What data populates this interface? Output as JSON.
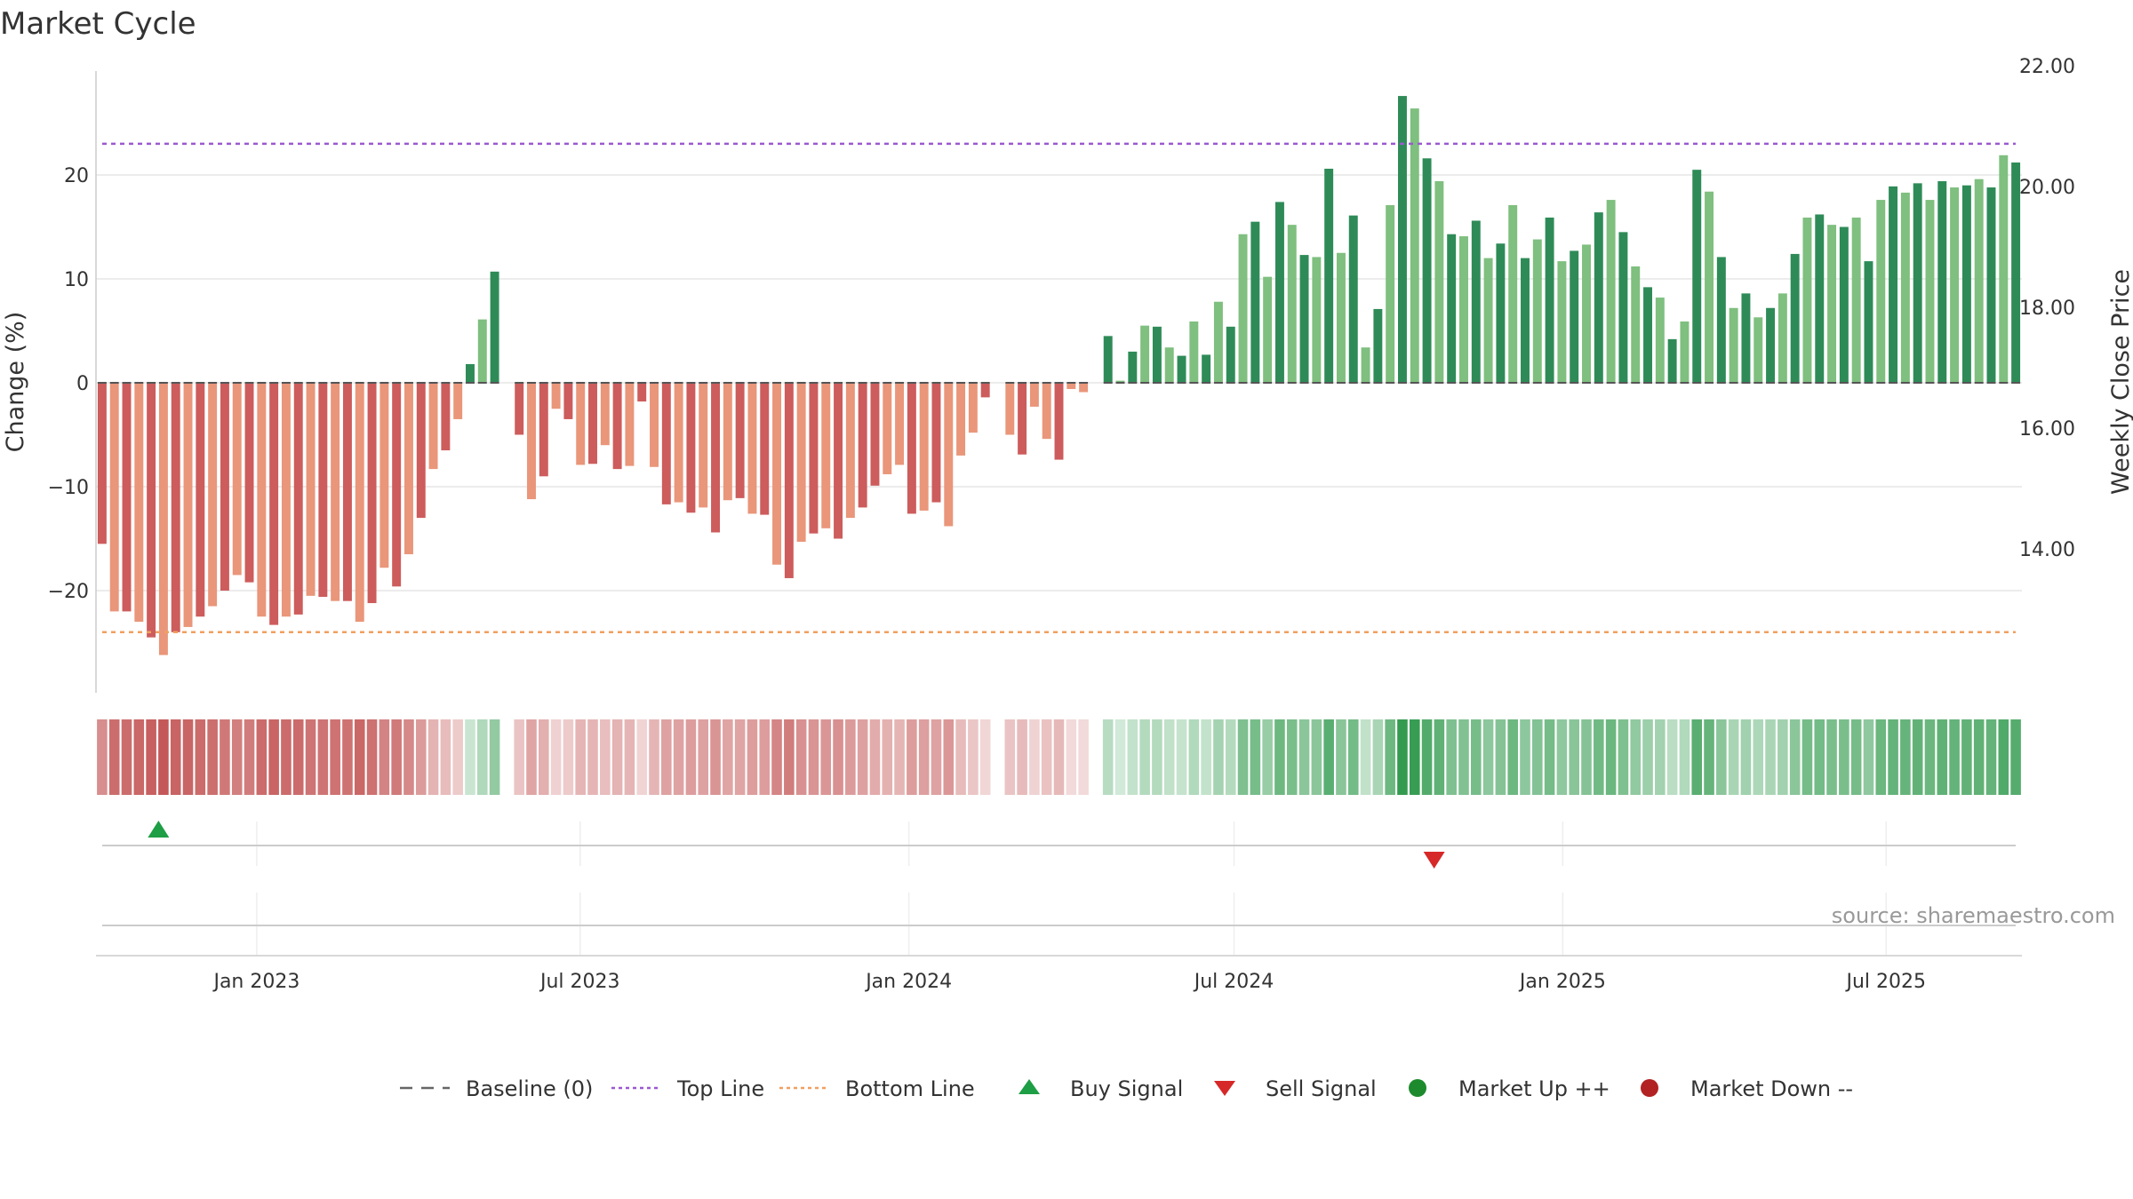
{
  "chart_data": {
    "type": "bar",
    "title": "Market Cycle",
    "ylabel_left": "Change (%)",
    "ylabel_right": "Weekly Close Price",
    "source": "source: sharemaestro.com",
    "ylim": [
      -30,
      30
    ],
    "yticks": [
      20,
      10,
      0,
      -10,
      -20
    ],
    "ytick_labels": [
      "20",
      "10",
      "0",
      "−10",
      "−20"
    ],
    "right_ylim": [
      12.0,
      22.5
    ],
    "right_yticks": [
      "22.00",
      "20.00",
      "18.00",
      "16.00",
      "14.00"
    ],
    "top_line": 23.0,
    "bottom_line": -24.0,
    "x_start": "2022-10-03",
    "x_end": "2025-09-15",
    "x_ticks": [
      {
        "date": "2023-01-01",
        "label": "Jan 2023"
      },
      {
        "date": "2023-07-01",
        "label": "Jul 2023"
      },
      {
        "date": "2024-01-01",
        "label": "Jan 2024"
      },
      {
        "date": "2024-07-01",
        "label": "Jul 2024"
      },
      {
        "date": "2025-01-01",
        "label": "Jan 2025"
      },
      {
        "date": "2025-07-01",
        "label": "Jul 2025"
      }
    ],
    "series": [
      {
        "name": "Change (%)",
        "start_date": "2022-10-03",
        "step_days": 7,
        "values": [
          -15.5,
          -22,
          -22,
          -23,
          -24.5,
          -26.2,
          -24,
          -23.5,
          -22.5,
          -21.5,
          -20,
          -18.5,
          -19.2,
          -22.5,
          -23.3,
          -22.5,
          -22.3,
          -20.5,
          -20.6,
          -21,
          -21,
          -23,
          -21.2,
          -17.8,
          -19.6,
          -16.5,
          -13,
          -8.3,
          -6.5,
          -3.5,
          1.8,
          6.1,
          10.7,
          null,
          -5,
          -11.2,
          -9,
          -2.5,
          -3.5,
          -7.9,
          -7.8,
          -6,
          -8.3,
          -8,
          -1.8,
          -8.1,
          -11.7,
          -11.5,
          -12.5,
          -12,
          -14.4,
          -11.3,
          -11.1,
          -12.6,
          -12.7,
          -17.5,
          -18.8,
          -15.3,
          -14.5,
          -14,
          -15,
          -13,
          -12,
          -9.9,
          -8.8,
          -7.9,
          -12.6,
          -12.3,
          -11.5,
          -13.8,
          -7,
          -4.8,
          -1.4,
          null,
          -5,
          -6.9,
          -2.3,
          -5.4,
          -7.4,
          -0.6,
          -0.9,
          null,
          4.5,
          0.2,
          3,
          5.5,
          5.4,
          3.4,
          2.6,
          5.9,
          2.7,
          7.8,
          5.4,
          14.3,
          15.5,
          10.2,
          17.4,
          15.2,
          12.3,
          12.1,
          20.6,
          12.5,
          16.1,
          3.4,
          7.1,
          17.1,
          27.6,
          26.4,
          21.6,
          19.4,
          14.3,
          14.1,
          15.6,
          12,
          13.4,
          17.1,
          12,
          13.8,
          15.9,
          11.7,
          12.7,
          13.3,
          16.4,
          17.6,
          14.5,
          11.2,
          9.2,
          8.2,
          4.2,
          5.9,
          20.5,
          18.4,
          12.1,
          7.2,
          8.6,
          6.3,
          7.2,
          8.6,
          12.4,
          15.9,
          16.2,
          15.2,
          15,
          15.9,
          11.7,
          17.6,
          18.9,
          18.3,
          19.2,
          17.6,
          19.4,
          18.8,
          19,
          19.6,
          18.8,
          21.9,
          21.2
        ]
      }
    ],
    "signals": [
      {
        "type": "buy",
        "date": "2022-11-07"
      },
      {
        "type": "sell",
        "date": "2024-10-21"
      }
    ]
  },
  "legend": [
    {
      "label": "Baseline (0)",
      "symbol": "dash",
      "color": "#666666"
    },
    {
      "label": "Top Line",
      "symbol": "dotted",
      "color": "#9b59d0"
    },
    {
      "label": "Bottom Line",
      "symbol": "dotted",
      "color": "#f0a060"
    },
    {
      "label": "Buy Signal",
      "symbol": "triangle-up",
      "color": "#1e9e45"
    },
    {
      "label": "Sell Signal",
      "symbol": "triangle-down",
      "color": "#d62828"
    },
    {
      "label": "Market Up ++",
      "symbol": "circle",
      "color": "#1e8a2e"
    },
    {
      "label": "Market Down --",
      "symbol": "circle",
      "color": "#b22222"
    }
  ],
  "colors": {
    "dark_red": "#cd5c5c",
    "light_red": "#e9967a",
    "dark_green": "#2e8b57",
    "light_green": "#7fbf7f",
    "top_line": "#9b59d0",
    "bottom_line": "#f0a060"
  }
}
